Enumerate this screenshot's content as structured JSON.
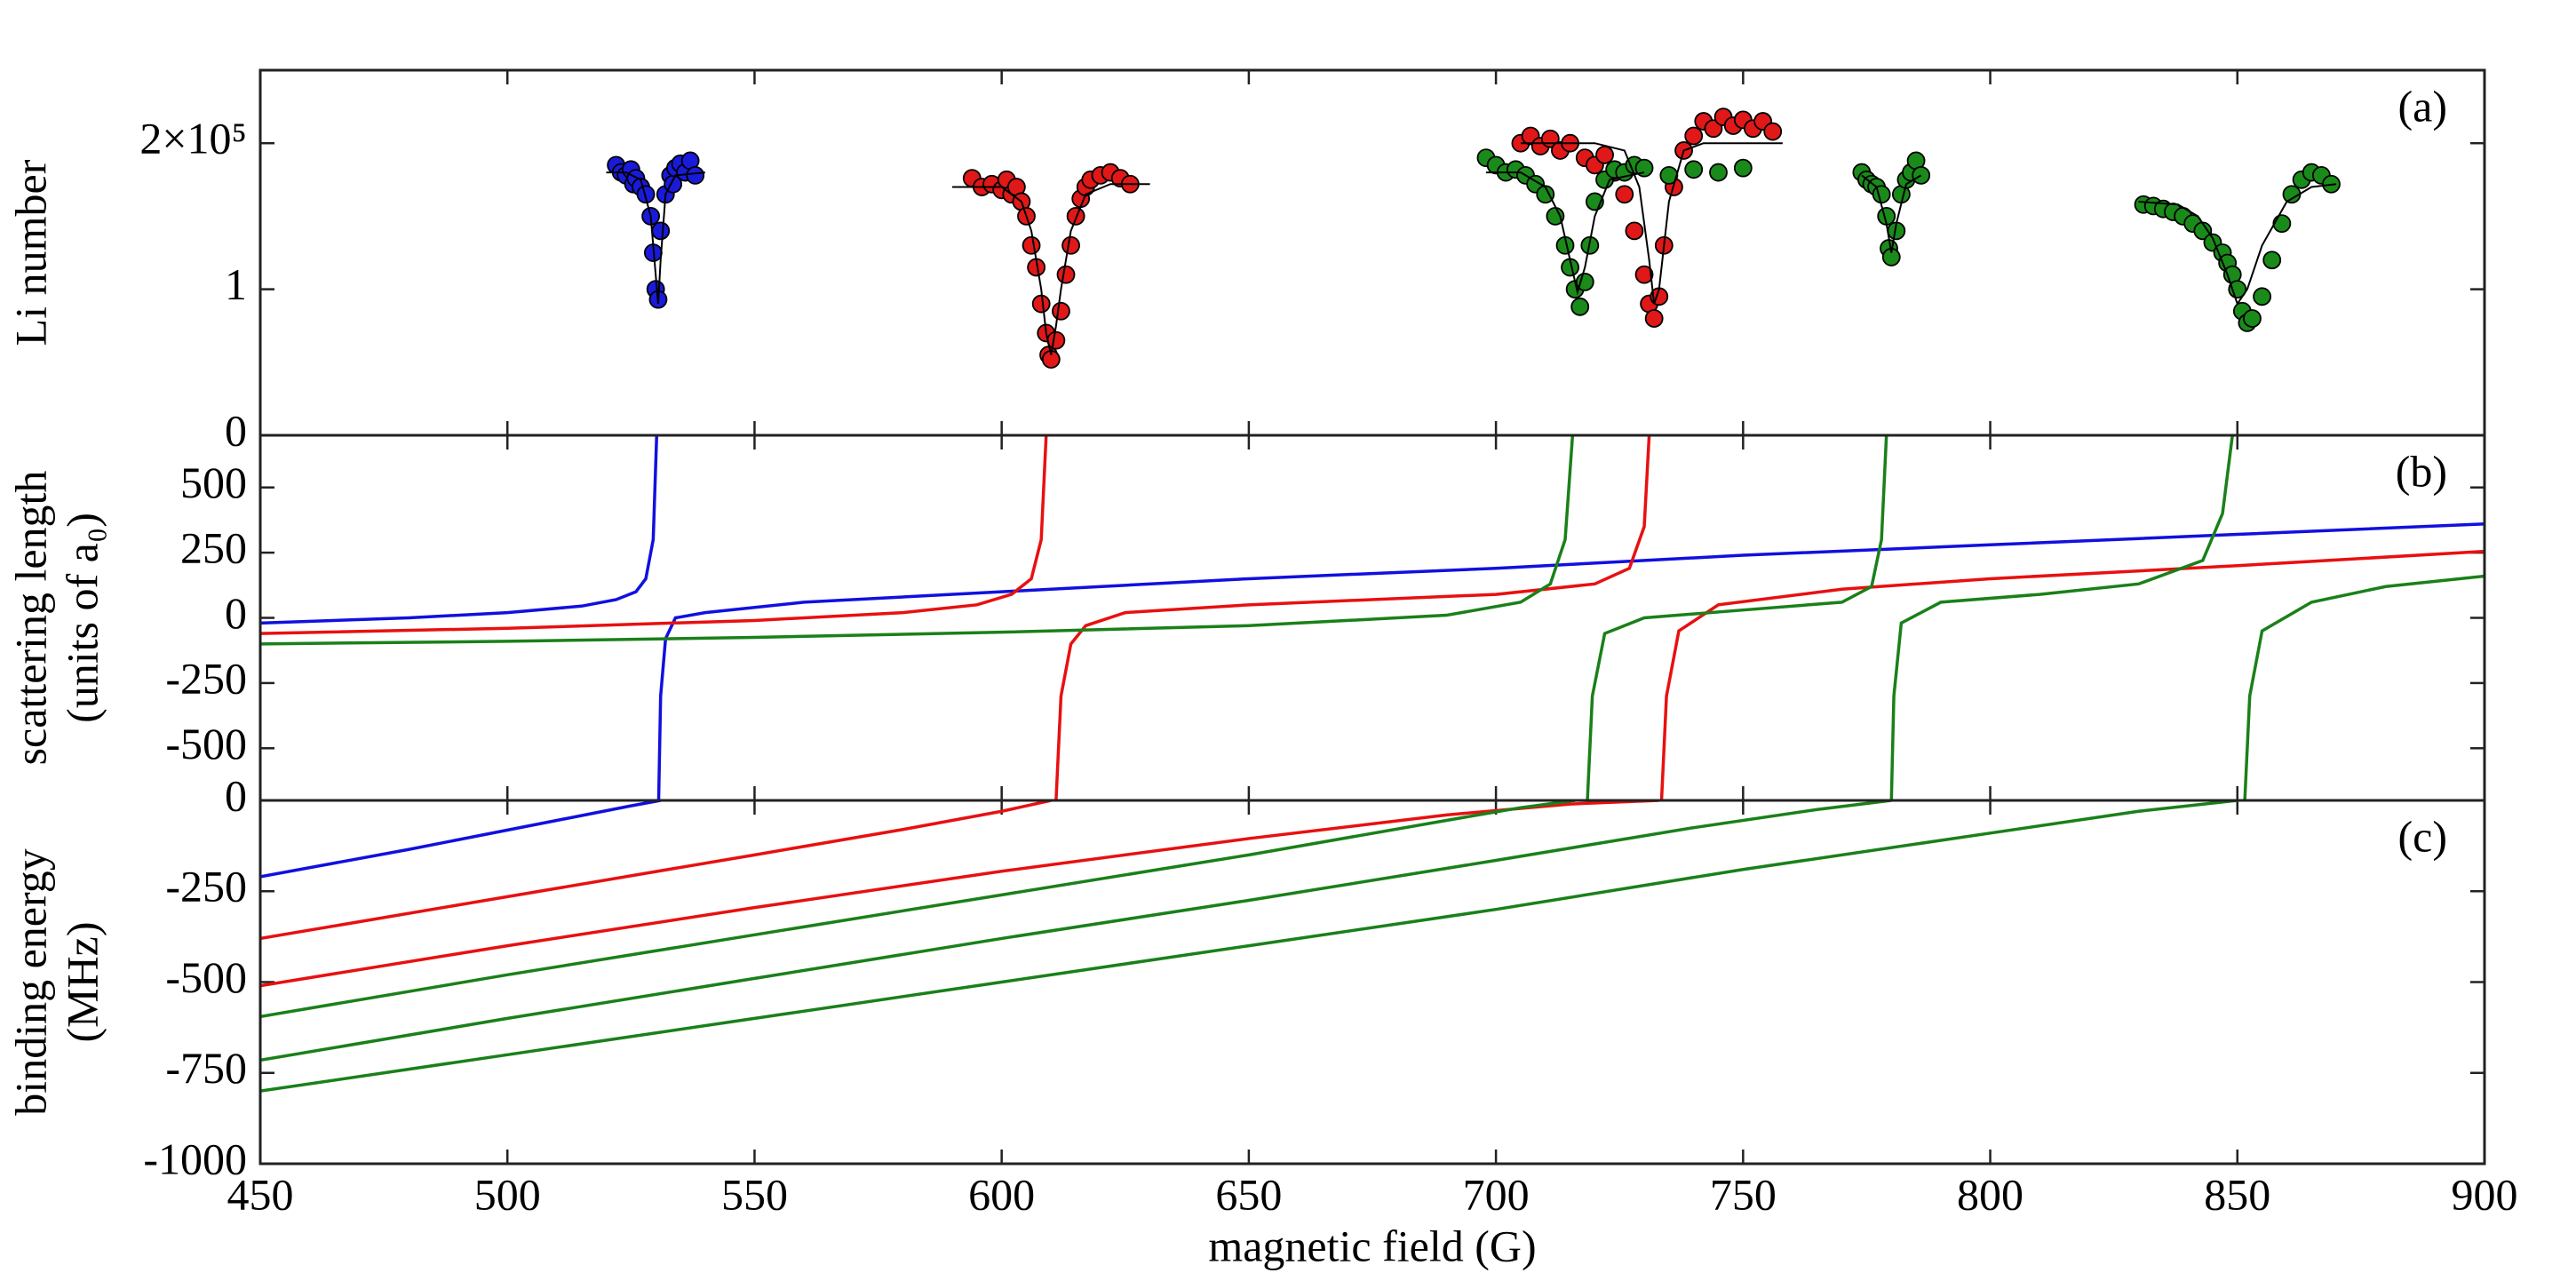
{
  "chart_data": [
    {
      "type": "scatter",
      "panel_label": "(a)",
      "ylabel": [
        "Li number"
      ],
      "xlim": [
        450,
        900
      ],
      "xticks": [
        450,
        500,
        550,
        600,
        650,
        700,
        750,
        800,
        850,
        900
      ],
      "ylim": [
        0,
        250000
      ],
      "yticks": [
        0,
        {
          "value": 100000,
          "label": "1"
        },
        {
          "value": 200000,
          "label": "2×10⁵"
        }
      ],
      "series": [
        {
          "type": "scatter",
          "color": "#1a1adb",
          "x": [
            522,
            523,
            524,
            525,
            525.5,
            526,
            527,
            528,
            529,
            529.5,
            530,
            530.5,
            531,
            532,
            533,
            533.5,
            534,
            535,
            536,
            537,
            538
          ],
          "values": [
            185000,
            180000,
            178000,
            182000,
            172000,
            176000,
            170000,
            165000,
            150000,
            125000,
            100000,
            93000,
            140000,
            165000,
            178000,
            172000,
            183000,
            186000,
            180000,
            188000,
            178000
          ]
        },
        {
          "type": "scatter",
          "color": "#e01818",
          "x": [
            594,
            596,
            598,
            600,
            601,
            602,
            603,
            604,
            605,
            606,
            607,
            608,
            609,
            609.5,
            610,
            611,
            612,
            613,
            614,
            615,
            616,
            617,
            618,
            620,
            622,
            624,
            626
          ],
          "values": [
            176000,
            170000,
            172000,
            168000,
            175000,
            165000,
            170000,
            160000,
            150000,
            130000,
            115000,
            90000,
            70000,
            55000,
            52000,
            65000,
            85000,
            110000,
            130000,
            150000,
            162000,
            170000,
            175000,
            178000,
            180000,
            176000,
            172000
          ]
        },
        {
          "type": "scatter",
          "color": "#e01818",
          "x": [
            705,
            707,
            709,
            711,
            713,
            715,
            718,
            720,
            722,
            724,
            726,
            728,
            730,
            731,
            732,
            733,
            734,
            736,
            738,
            740,
            742,
            744,
            746,
            748,
            750,
            752,
            754,
            756
          ],
          "values": [
            200000,
            205000,
            198000,
            203000,
            195000,
            200000,
            190000,
            185000,
            192000,
            180000,
            165000,
            140000,
            110000,
            90000,
            80000,
            95000,
            130000,
            170000,
            195000,
            205000,
            215000,
            210000,
            218000,
            212000,
            216000,
            210000,
            215000,
            208000
          ]
        },
        {
          "type": "scatter",
          "color": "#1a8a1a",
          "x": [
            698,
            700,
            702,
            704,
            706,
            708,
            710,
            712,
            714,
            715,
            716,
            717,
            718,
            719,
            720,
            722,
            724,
            726,
            728,
            730,
            735,
            740,
            745,
            750,
            774,
            775,
            776,
            777,
            778,
            779,
            779.5,
            780,
            781,
            782,
            783,
            784,
            785,
            786,
            831,
            833,
            835,
            837,
            839,
            841,
            843,
            845,
            847,
            848,
            849,
            850,
            851,
            852,
            853,
            855,
            857,
            859,
            861,
            863,
            865,
            867,
            869
          ],
          "values": [
            190000,
            185000,
            180000,
            182000,
            178000,
            172000,
            165000,
            150000,
            130000,
            115000,
            100000,
            88000,
            105000,
            130000,
            160000,
            175000,
            182000,
            180000,
            185000,
            183000,
            178000,
            182000,
            180000,
            183000,
            180000,
            175000,
            172000,
            170000,
            165000,
            150000,
            128000,
            122000,
            140000,
            165000,
            175000,
            180000,
            188000,
            178000,
            158000,
            157000,
            155000,
            153000,
            150000,
            145000,
            140000,
            132000,
            125000,
            118000,
            110000,
            100000,
            85000,
            77000,
            80000,
            95000,
            120000,
            145000,
            165000,
            175000,
            180000,
            178000,
            172000
          ]
        },
        {
          "type": "line",
          "color": "#000000",
          "x": [
            520,
            524,
            527,
            529,
            530,
            530.5,
            531,
            532,
            534,
            540
          ],
          "values": [
            180000,
            180000,
            175000,
            150000,
            110000,
            90000,
            120000,
            165000,
            178000,
            180000
          ]
        },
        {
          "type": "line",
          "color": "#000000",
          "x": [
            590,
            600,
            604,
            606,
            608,
            609,
            610,
            611,
            612,
            614,
            617,
            622,
            630
          ],
          "values": [
            170000,
            170000,
            160000,
            140000,
            100000,
            70000,
            55000,
            75000,
            100000,
            140000,
            165000,
            172000,
            172000
          ]
        },
        {
          "type": "line",
          "color": "#000000",
          "x": [
            705,
            720,
            726,
            729,
            731,
            732,
            733,
            735,
            738,
            742,
            758
          ],
          "values": [
            200000,
            200000,
            195000,
            170000,
            120000,
            90000,
            100000,
            160000,
            195000,
            200000,
            200000
          ]
        },
        {
          "type": "line",
          "color": "#000000",
          "x": [
            698,
            705,
            710,
            713,
            715,
            716.5,
            718,
            720,
            723,
            730
          ],
          "values": [
            180000,
            180000,
            170000,
            150000,
            120000,
            98000,
            115000,
            150000,
            175000,
            180000
          ]
        },
        {
          "type": "line",
          "color": "#000000",
          "x": [
            774,
            777,
            779,
            780,
            781,
            783,
            786
          ],
          "values": [
            178000,
            170000,
            145000,
            125000,
            145000,
            172000,
            178000
          ]
        },
        {
          "type": "line",
          "color": "#000000",
          "x": [
            830,
            838,
            842,
            845,
            848,
            850,
            852,
            855,
            860,
            865,
            870
          ],
          "values": [
            160000,
            158000,
            150000,
            135000,
            110000,
            90000,
            100000,
            130000,
            160000,
            170000,
            172000
          ]
        }
      ]
    },
    {
      "type": "line",
      "panel_label": "(b)",
      "ylabel": [
        "scattering length",
        "(units of a₀)"
      ],
      "xlim": [
        450,
        900
      ],
      "xticks": [
        450,
        500,
        550,
        600,
        650,
        700,
        750,
        800,
        850,
        900
      ],
      "ylim": [
        -700,
        700
      ],
      "yticks": [
        -500,
        -250,
        0,
        250,
        500
      ],
      "series": [
        {
          "color": "#1010e0",
          "x": [
            450,
            480,
            500,
            515,
            522,
            526,
            528,
            529.5,
            530.2,
            530.4,
            530.6,
            531,
            532,
            534,
            540,
            560,
            600,
            650,
            700,
            750,
            800,
            850,
            900
          ],
          "values": [
            -20,
            0,
            20,
            45,
            70,
            100,
            150,
            300,
            700,
            null,
            -700,
            -300,
            -80,
            0,
            20,
            60,
            100,
            150,
            190,
            240,
            280,
            320,
            360
          ]
        },
        {
          "color": "#e81010",
          "x": [
            450,
            500,
            550,
            580,
            595,
            602,
            606,
            608,
            609,
            610,
            611,
            612,
            614,
            617,
            625,
            650,
            700,
            720,
            727,
            730,
            731,
            732,
            733.5,
            734.5,
            737,
            745,
            770,
            800,
            850,
            900
          ],
          "values": [
            -60,
            -40,
            -10,
            20,
            50,
            90,
            150,
            300,
            700,
            null,
            -700,
            -300,
            -100,
            -30,
            20,
            50,
            90,
            130,
            190,
            350,
            700,
            null,
            -700,
            -300,
            -50,
            50,
            110,
            150,
            200,
            255
          ]
        },
        {
          "color": "#1a801a",
          "x": [
            450,
            500,
            550,
            600,
            650,
            690,
            705,
            711,
            714,
            715.5,
            717,
            718.5,
            719.5,
            722,
            730,
            750,
            770,
            776,
            778,
            779,
            779.5,
            780,
            780.5,
            782,
            790,
            810,
            830,
            843,
            847,
            849,
            850,
            851.5,
            852.5,
            855,
            865,
            880,
            900
          ],
          "values": [
            -100,
            -90,
            -75,
            -55,
            -30,
            10,
            60,
            130,
            300,
            700,
            null,
            -700,
            -300,
            -60,
            0,
            30,
            60,
            120,
            300,
            700,
            null,
            -700,
            -300,
            -20,
            60,
            90,
            130,
            220,
            400,
            700,
            null,
            -700,
            -300,
            -50,
            60,
            120,
            160
          ]
        }
      ]
    },
    {
      "type": "line",
      "panel_label": "(c)",
      "ylabel": [
        "binding energy",
        "(MHz)"
      ],
      "xlabel": "magnetic field (G)",
      "xlim": [
        450,
        900
      ],
      "xticks": [
        450,
        500,
        550,
        600,
        650,
        700,
        750,
        800,
        850,
        900
      ],
      "ylim": [
        -1000,
        0
      ],
      "yticks": [
        -1000,
        -750,
        -500,
        -250,
        0
      ],
      "series": [
        {
          "color": "#1010e0",
          "x": [
            450,
            480,
            510,
            525,
            531
          ],
          "values": [
            -210,
            -135,
            -55,
            -15,
            0
          ]
        },
        {
          "color": "#e81010",
          "x": [
            450,
            500,
            550,
            580,
            600,
            610
          ],
          "values": [
            -380,
            -265,
            -150,
            -80,
            -30,
            0
          ]
        },
        {
          "color": "#e81010",
          "x": [
            450,
            500,
            550,
            600,
            650,
            690,
            715,
            733
          ],
          "values": [
            -510,
            -400,
            -295,
            -195,
            -105,
            -40,
            -10,
            0
          ]
        },
        {
          "color": "#1a801a",
          "x": [
            450,
            500,
            550,
            600,
            650,
            690,
            705,
            716
          ],
          "values": [
            -595,
            -480,
            -370,
            -260,
            -150,
            -55,
            -20,
            0
          ]
        },
        {
          "color": "#1a801a",
          "x": [
            450,
            500,
            550,
            600,
            650,
            700,
            740,
            765,
            780
          ],
          "values": [
            -715,
            -600,
            -490,
            -380,
            -275,
            -165,
            -75,
            -25,
            0
          ]
        },
        {
          "color": "#1a801a",
          "x": [
            450,
            500,
            550,
            600,
            650,
            700,
            750,
            800,
            830,
            850
          ],
          "values": [
            -800,
            -700,
            -600,
            -500,
            -400,
            -300,
            -190,
            -90,
            -30,
            0
          ]
        }
      ]
    }
  ]
}
